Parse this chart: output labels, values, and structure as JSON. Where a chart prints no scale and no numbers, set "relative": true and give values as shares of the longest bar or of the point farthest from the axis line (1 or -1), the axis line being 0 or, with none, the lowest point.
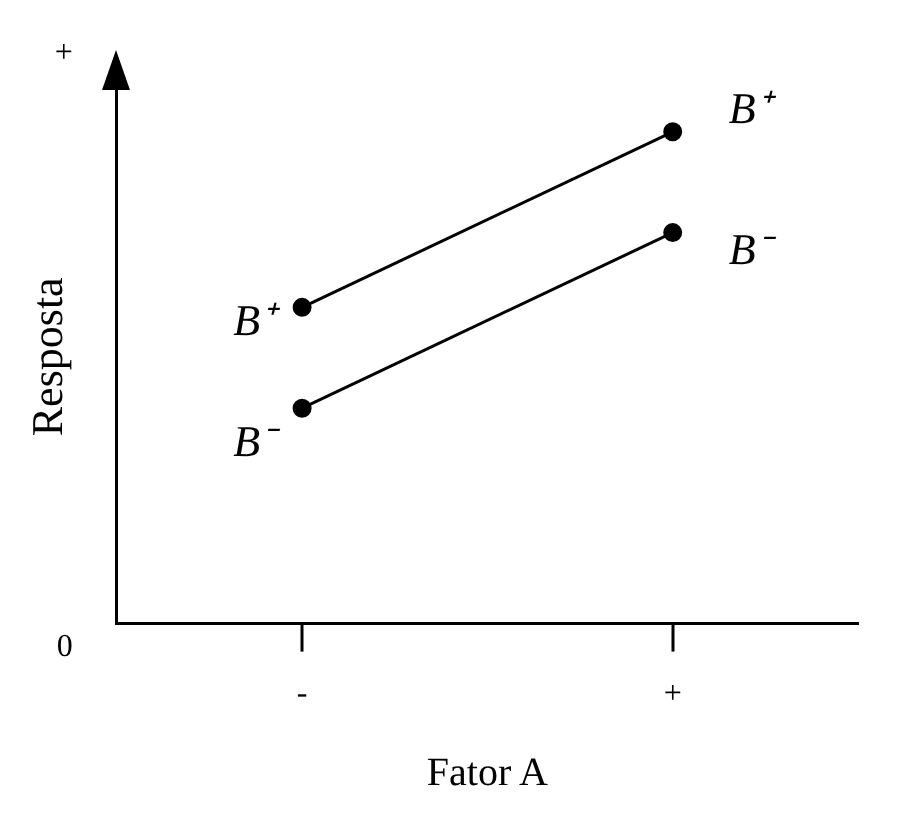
{
  "chart_data": {
    "type": "line",
    "xlabel": "Fator A",
    "ylabel": "Resposta",
    "categories": [
      "-",
      "+"
    ],
    "relative": true,
    "series": [
      {
        "name": "B⁺",
        "color": "#000000",
        "values": [
          0.643,
          1
        ]
      },
      {
        "name": "B⁻",
        "color": "#000000",
        "values": [
          0.438,
          0.795
        ]
      }
    ],
    "marker": "circle",
    "line_style": "solid",
    "grid": false,
    "legend": false,
    "annotations": [
      "0",
      "+"
    ]
  }
}
